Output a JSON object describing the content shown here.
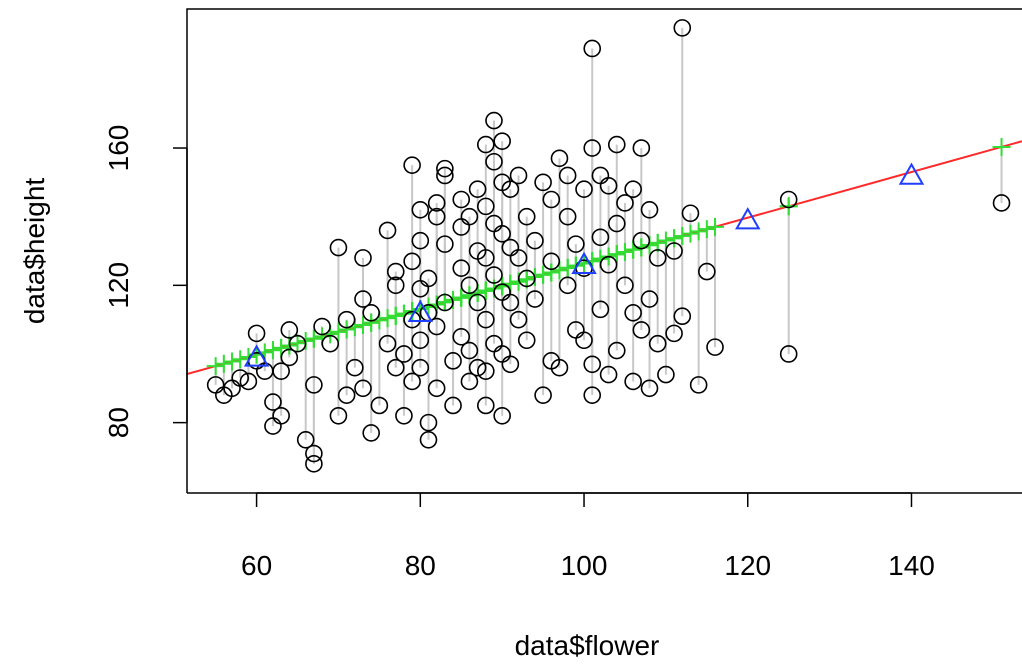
{
  "chart_data": {
    "type": "scatter",
    "xlabel": "data$flower",
    "ylabel": "data$height",
    "xlim": [
      51.5,
      153.5
    ],
    "ylim": [
      59.5,
      200.5
    ],
    "x_ticks": [
      "60",
      "80",
      "100",
      "120",
      "140"
    ],
    "y_ticks": [
      "80",
      "120",
      "160"
    ],
    "grid": false,
    "fit_line": {
      "intercept": 59.9,
      "slope": 0.665,
      "color": "#ff2a2a"
    },
    "series": [
      {
        "marker": "circle",
        "color": "#000000",
        "points": [
          [
            55,
            91
          ],
          [
            56,
            88
          ],
          [
            57,
            90
          ],
          [
            58,
            93
          ],
          [
            59,
            92
          ],
          [
            60,
            98
          ],
          [
            60,
            106
          ],
          [
            61,
            95
          ],
          [
            62,
            86
          ],
          [
            62,
            79
          ],
          [
            63,
            82
          ],
          [
            63,
            95
          ],
          [
            64,
            107
          ],
          [
            64,
            99
          ],
          [
            65,
            103
          ],
          [
            66,
            75
          ],
          [
            67,
            71
          ],
          [
            67,
            68
          ],
          [
            67,
            91
          ],
          [
            68,
            108
          ],
          [
            69,
            103
          ],
          [
            70,
            82
          ],
          [
            70,
            131
          ],
          [
            71,
            110
          ],
          [
            71,
            88
          ],
          [
            72,
            96
          ],
          [
            73,
            116
          ],
          [
            73,
            128
          ],
          [
            73,
            90
          ],
          [
            74,
            112
          ],
          [
            74,
            77
          ],
          [
            75,
            85
          ],
          [
            76,
            103
          ],
          [
            76,
            136
          ],
          [
            77,
            96
          ],
          [
            77,
            124
          ],
          [
            77,
            120
          ],
          [
            78,
            82
          ],
          [
            78,
            100
          ],
          [
            79,
            127
          ],
          [
            79,
            155
          ],
          [
            79,
            110
          ],
          [
            79,
            92
          ],
          [
            80,
            142
          ],
          [
            80,
            133
          ],
          [
            80,
            119
          ],
          [
            80,
            104
          ],
          [
            80,
            96
          ],
          [
            81,
            80
          ],
          [
            81,
            75
          ],
          [
            81,
            122
          ],
          [
            81,
            112
          ],
          [
            82,
            144
          ],
          [
            82,
            140
          ],
          [
            82,
            108
          ],
          [
            82,
            90
          ],
          [
            83,
            152
          ],
          [
            83,
            154
          ],
          [
            83,
            132
          ],
          [
            83,
            115
          ],
          [
            84,
            98
          ],
          [
            84,
            85
          ],
          [
            85,
            145
          ],
          [
            85,
            137
          ],
          [
            85,
            125
          ],
          [
            85,
            105
          ],
          [
            86,
            140
          ],
          [
            86,
            120
          ],
          [
            86,
            101
          ],
          [
            86,
            92
          ],
          [
            87,
            148
          ],
          [
            87,
            130
          ],
          [
            87,
            115
          ],
          [
            87,
            96
          ],
          [
            88,
            161
          ],
          [
            88,
            143
          ],
          [
            88,
            128
          ],
          [
            88,
            110
          ],
          [
            88,
            95
          ],
          [
            88,
            85
          ],
          [
            89,
            168
          ],
          [
            89,
            156
          ],
          [
            89,
            138
          ],
          [
            89,
            123
          ],
          [
            89,
            103
          ],
          [
            90,
            162
          ],
          [
            90,
            150
          ],
          [
            90,
            135
          ],
          [
            90,
            118
          ],
          [
            90,
            100
          ],
          [
            90,
            82
          ],
          [
            91,
            148
          ],
          [
            91,
            131
          ],
          [
            91,
            115
          ],
          [
            91,
            97
          ],
          [
            92,
            152
          ],
          [
            92,
            128
          ],
          [
            92,
            110
          ],
          [
            93,
            140
          ],
          [
            93,
            122
          ],
          [
            93,
            104
          ],
          [
            94,
            133
          ],
          [
            94,
            116
          ],
          [
            95,
            88
          ],
          [
            95,
            150
          ],
          [
            96,
            145
          ],
          [
            96,
            127
          ],
          [
            96,
            98
          ],
          [
            97,
            157
          ],
          [
            97,
            96
          ],
          [
            98,
            152
          ],
          [
            98,
            140
          ],
          [
            98,
            120
          ],
          [
            99,
            132
          ],
          [
            99,
            107
          ],
          [
            100,
            148
          ],
          [
            100,
            125
          ],
          [
            100,
            104
          ],
          [
            101,
            88
          ],
          [
            101,
            97
          ],
          [
            101,
            189
          ],
          [
            101,
            160
          ],
          [
            102,
            152
          ],
          [
            102,
            134
          ],
          [
            102,
            113
          ],
          [
            103,
            149
          ],
          [
            103,
            126
          ],
          [
            103,
            94
          ],
          [
            104,
            161
          ],
          [
            104,
            138
          ],
          [
            104,
            101
          ],
          [
            105,
            144
          ],
          [
            105,
            120
          ],
          [
            106,
            148
          ],
          [
            106,
            112
          ],
          [
            106,
            92
          ],
          [
            107,
            160
          ],
          [
            107,
            133
          ],
          [
            107,
            107
          ],
          [
            108,
            142
          ],
          [
            108,
            116
          ],
          [
            108,
            90
          ],
          [
            109,
            128
          ],
          [
            109,
            103
          ],
          [
            110,
            94
          ],
          [
            111,
            130
          ],
          [
            111,
            106
          ],
          [
            112,
            195
          ],
          [
            112,
            111
          ],
          [
            113,
            141
          ],
          [
            114,
            91
          ],
          [
            115,
            124
          ],
          [
            116,
            102
          ],
          [
            125,
            145
          ],
          [
            125,
            100
          ],
          [
            151,
            144
          ]
        ]
      },
      {
        "marker": "triangle",
        "color": "#1f3fff",
        "points": [
          [
            60,
            99
          ],
          [
            80,
            112
          ],
          [
            100,
            126
          ],
          [
            120,
            139
          ],
          [
            140,
            152
          ]
        ]
      }
    ],
    "fitted_marker": "plus",
    "fitted_color": "#33dd33",
    "residual_color": "#c8c8c8"
  }
}
